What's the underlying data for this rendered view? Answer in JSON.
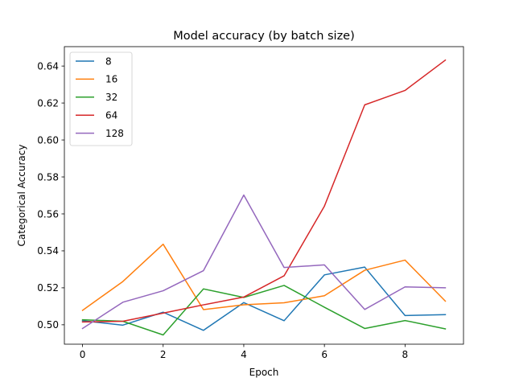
{
  "chart_data": {
    "type": "line",
    "title": "Model accuracy (by batch size)",
    "xlabel": "Epoch",
    "ylabel": "Categorical Accuracy",
    "x": [
      0,
      1,
      2,
      3,
      4,
      5,
      6,
      7,
      8,
      9
    ],
    "xlim": [
      -0.45,
      9.45
    ],
    "ylim": [
      0.4895,
      0.6505
    ],
    "xticks": [
      0,
      2,
      4,
      6,
      8
    ],
    "xtick_labels": [
      "0",
      "2",
      "4",
      "6",
      "8"
    ],
    "yticks": [
      0.5,
      0.52,
      0.54,
      0.56,
      0.58,
      0.6,
      0.62,
      0.64
    ],
    "ytick_labels": [
      "0.50",
      "0.52",
      "0.54",
      "0.56",
      "0.58",
      "0.60",
      "0.62",
      "0.64"
    ],
    "grid": false,
    "legend_position": "top-left",
    "series": [
      {
        "name": "8",
        "color": "#1f77b4",
        "values": [
          0.5022,
          0.4998,
          0.5068,
          0.497,
          0.512,
          0.5022,
          0.527,
          0.5312,
          0.505,
          0.5055
        ]
      },
      {
        "name": "16",
        "color": "#ff7f0e",
        "values": [
          0.5078,
          0.5234,
          0.5436,
          0.5082,
          0.5108,
          0.5119,
          0.5157,
          0.5295,
          0.535,
          0.5128
        ]
      },
      {
        "name": "32",
        "color": "#2ca02c",
        "values": [
          0.5027,
          0.5019,
          0.4945,
          0.5194,
          0.5148,
          0.5213,
          0.5095,
          0.498,
          0.5023,
          0.4978
        ]
      },
      {
        "name": "64",
        "color": "#d62728",
        "values": [
          0.5015,
          0.5019,
          0.5063,
          0.5108,
          0.515,
          0.5265,
          0.5642,
          0.619,
          0.6268,
          0.6432
        ]
      },
      {
        "name": "128",
        "color": "#9467bd",
        "values": [
          0.498,
          0.5122,
          0.5184,
          0.5293,
          0.5702,
          0.531,
          0.5324,
          0.5083,
          0.5205,
          0.52
        ]
      }
    ]
  }
}
